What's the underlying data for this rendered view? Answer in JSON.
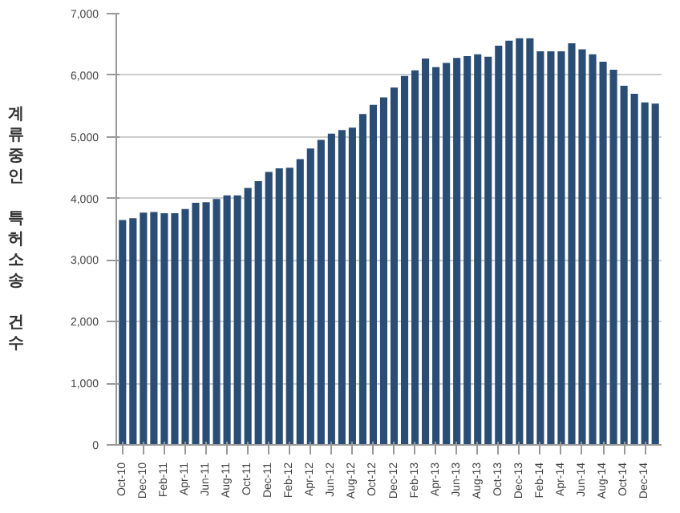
{
  "chart_data": {
    "type": "bar",
    "ylabel": "계류중인 특허소송 건수",
    "categories": [
      "Oct-10",
      null,
      "Dec-10",
      null,
      "Feb-11",
      null,
      "Apr-11",
      null,
      "Jun-11",
      null,
      "Aug-11",
      null,
      "Oct-11",
      null,
      "Dec-11",
      null,
      "Feb-12",
      null,
      "Apr-12",
      null,
      "Jun-12",
      null,
      "Aug-12",
      null,
      "Oct-12",
      null,
      "Dec-12",
      null,
      "Feb-13",
      null,
      "Apr-13",
      null,
      "Jun-13",
      null,
      "Aug-13",
      null,
      "Oct-13",
      null,
      "Dec-13",
      null,
      "Feb-14",
      null,
      "Apr-14",
      null,
      "Jun-14",
      null,
      "Aug-14",
      null,
      "Oct-14",
      null,
      "Dec-14",
      null
    ],
    "values": [
      3650,
      3680,
      3770,
      3780,
      3760,
      3760,
      3830,
      3930,
      3940,
      3990,
      4050,
      4050,
      4170,
      4280,
      4430,
      4490,
      4500,
      4640,
      4810,
      4950,
      5050,
      5110,
      5150,
      5370,
      5520,
      5640,
      5800,
      5990,
      6080,
      6270,
      6130,
      6200,
      6280,
      6310,
      6340,
      6300,
      6480,
      6560,
      6600,
      6600,
      6390,
      6390,
      6390,
      6520,
      6420,
      6340,
      6220,
      6090,
      5830,
      5700,
      5560,
      5540
    ],
    "color": "#2a4d75",
    "ylim": [
      0,
      7000
    ],
    "yticks": [
      {
        "value": 0,
        "label": "0"
      },
      {
        "value": 1000,
        "label": "1,000"
      },
      {
        "value": 2000,
        "label": "2,000"
      },
      {
        "value": 3000,
        "label": "3,000"
      },
      {
        "value": 4000,
        "label": "4,000"
      },
      {
        "value": 5000,
        "label": "5,000"
      },
      {
        "value": 6000,
        "label": "6,000"
      },
      {
        "value": 7000,
        "label": "7,000"
      }
    ],
    "grid": "y"
  }
}
